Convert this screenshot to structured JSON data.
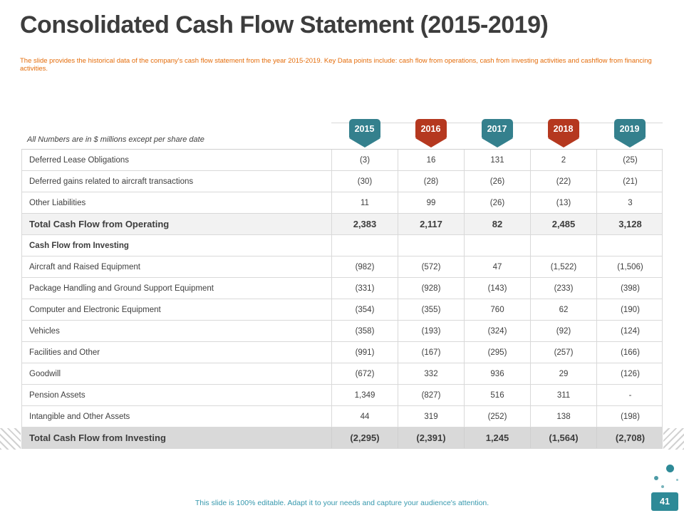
{
  "slide": {
    "title": "Consolidated Cash Flow Statement (2015-2019)",
    "subtitle": "The slide provides the historical data of the company's cash flow statement from the year 2015-2019. Key Data points include: cash flow from operations, cash from investing activities and cashflow from financing activities.",
    "footer": "This slide is 100% editable. Adapt it to your needs and capture your audience's attention.",
    "page_number": "41"
  },
  "colors": {
    "teal": "#34808d",
    "red": "#b5381f",
    "subtitle_orange": "#e46c0a",
    "footer_teal": "#3698ad",
    "total_light_bg": "#f2f2f2",
    "total_dark_bg": "#d9d9d9"
  },
  "table": {
    "note": "All Numbers are in $ millions except per share date",
    "years": [
      {
        "label": "2015",
        "color": "#34808d"
      },
      {
        "label": "2016",
        "color": "#b5381f"
      },
      {
        "label": "2017",
        "color": "#34808d"
      },
      {
        "label": "2018",
        "color": "#b5381f"
      },
      {
        "label": "2019",
        "color": "#34808d"
      }
    ],
    "rows": [
      {
        "label": "Deferred Lease Obligations",
        "style": "normal",
        "values": [
          "(3)",
          "16",
          "131",
          "2",
          "(25)"
        ]
      },
      {
        "label": "Deferred gains related to aircraft transactions",
        "style": "normal",
        "values": [
          "(30)",
          "(28)",
          "(26)",
          "(22)",
          "(21)"
        ]
      },
      {
        "label": "Other Liabilities",
        "style": "normal",
        "values": [
          "11",
          "99",
          "(26)",
          "(13)",
          "3"
        ]
      },
      {
        "label": "Total Cash Flow from Operating",
        "style": "total-light",
        "values": [
          "2,383",
          "2,117",
          "82",
          "2,485",
          "3,128"
        ]
      },
      {
        "label": "Cash Flow from Investing",
        "style": "section",
        "values": [
          "",
          "",
          "",
          "",
          ""
        ]
      },
      {
        "label": "Aircraft and Raised Equipment",
        "style": "normal",
        "values": [
          "(982)",
          "(572)",
          "47",
          "(1,522)",
          "(1,506)"
        ]
      },
      {
        "label": "Package Handling and Ground Support Equipment",
        "style": "normal",
        "values": [
          "(331)",
          "(928)",
          "(143)",
          "(233)",
          "(398)"
        ]
      },
      {
        "label": "Computer and Electronic Equipment",
        "style": "normal",
        "values": [
          "(354)",
          "(355)",
          "760",
          "62",
          "(190)"
        ]
      },
      {
        "label": "Vehicles",
        "style": "normal",
        "values": [
          "(358)",
          "(193)",
          "(324)",
          "(92)",
          "(124)"
        ]
      },
      {
        "label": "Facilities and Other",
        "style": "normal",
        "values": [
          "(991)",
          "(167)",
          "(295)",
          "(257)",
          "(166)"
        ]
      },
      {
        "label": "Goodwill",
        "style": "normal",
        "values": [
          "(672)",
          "332",
          "936",
          "29",
          "(126)"
        ]
      },
      {
        "label": "Pension Assets",
        "style": "normal",
        "values": [
          "1,349",
          "(827)",
          "516",
          "311",
          "-"
        ]
      },
      {
        "label": "Intangible and Other Assets",
        "style": "normal",
        "values": [
          "44",
          "319",
          "(252)",
          "138",
          "(198)"
        ]
      },
      {
        "label": "Total Cash Flow from Investing",
        "style": "total-dark",
        "values": [
          "(2,295)",
          "(2,391)",
          "1,245",
          "(1,564)",
          "(2,708)"
        ]
      }
    ]
  }
}
